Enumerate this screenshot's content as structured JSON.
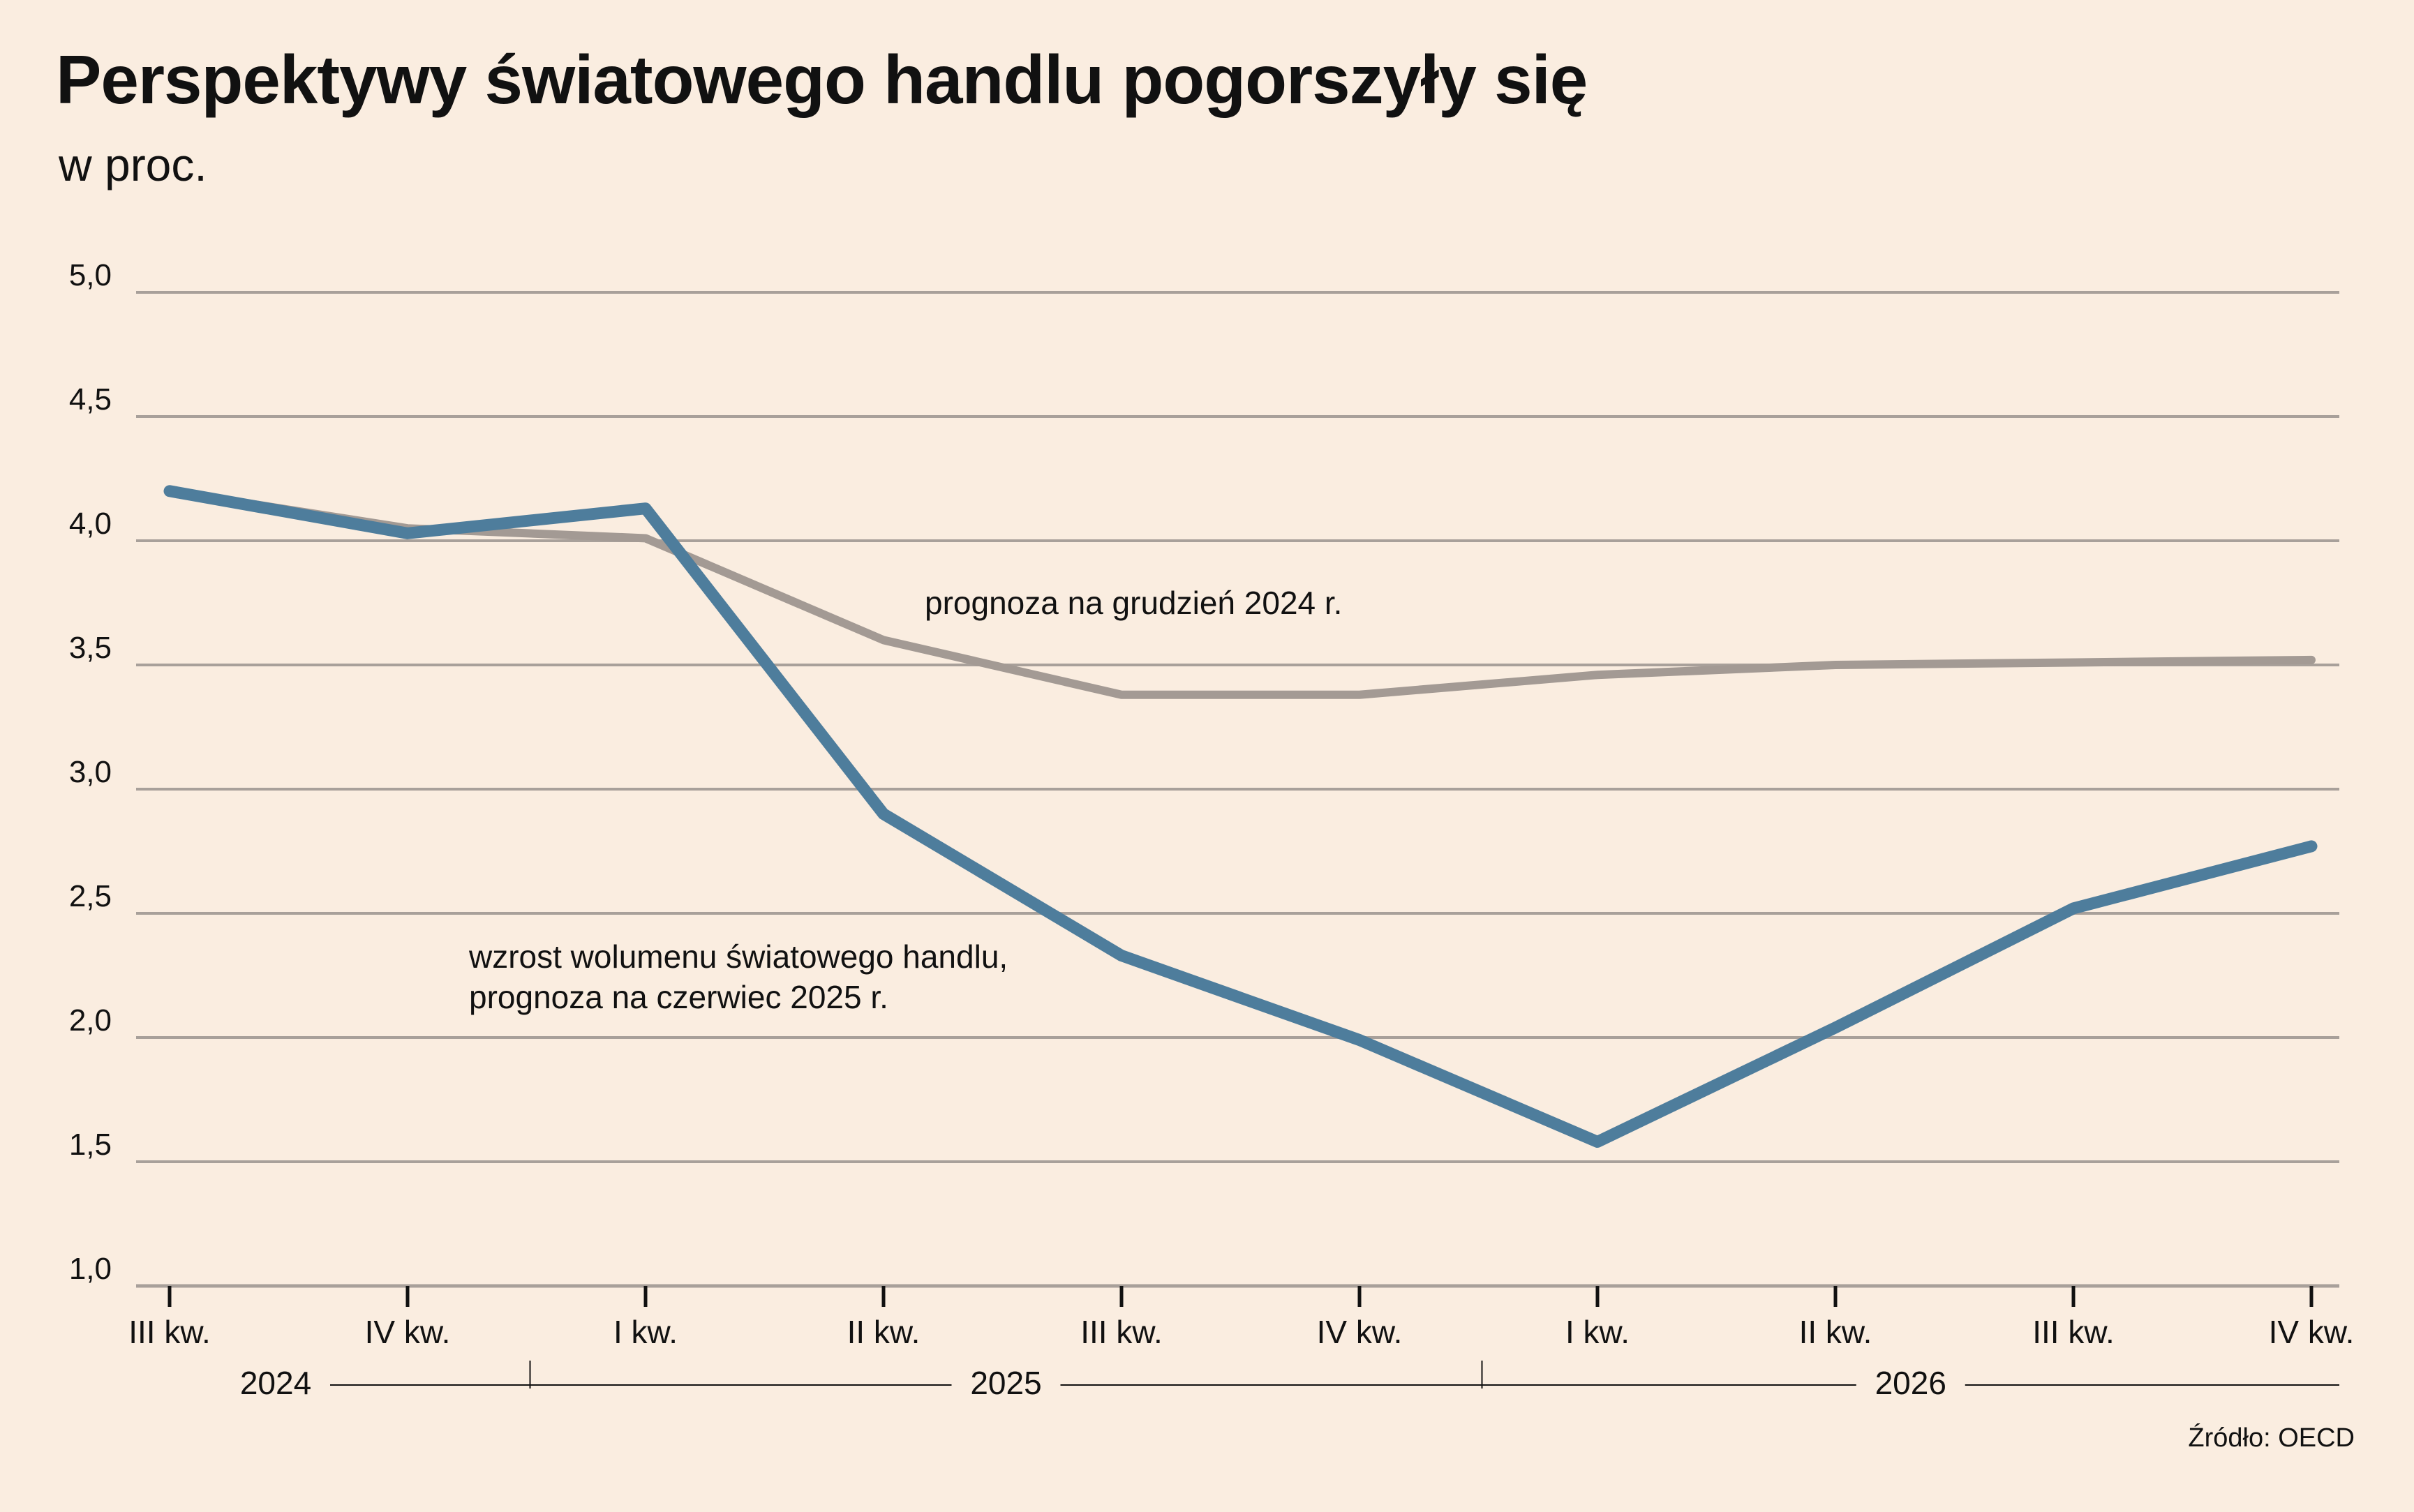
{
  "title": "Perspektywy światowego handlu pogorszyły się",
  "subtitle": "w proc.",
  "source": "Źródło: OECD",
  "colors": {
    "background": "#faede0",
    "forecast_june_2025": "#4e7d9c",
    "forecast_dec_2024": "#a39a94",
    "grid": "#a8a09a"
  },
  "chart_data": {
    "type": "line",
    "title": "Perspektywy światowego handlu pogorszyły się",
    "ylabel": "w proc.",
    "ylim": [
      1.0,
      5.0
    ],
    "yticks": [
      "1,0",
      "1,5",
      "2,0",
      "2,5",
      "3,0",
      "3,5",
      "4,0",
      "4,5",
      "5,0"
    ],
    "categories": [
      "III kw.",
      "IV kw.",
      "I kw.",
      "II kw.",
      "III kw.",
      "IV kw.",
      "I kw.",
      "II kw.",
      "III kw.",
      "IV kw."
    ],
    "year_groups": [
      {
        "label": "2024",
        "start": 0,
        "end": 1
      },
      {
        "label": "2025",
        "start": 2,
        "end": 5
      },
      {
        "label": "2026",
        "start": 6,
        "end": 9
      }
    ],
    "series": [
      {
        "name": "prognoza na grudzień 2024 r.",
        "color": "#a39a94",
        "values": [
          4.2,
          4.05,
          4.01,
          3.6,
          3.38,
          3.38,
          3.46,
          3.5,
          3.51,
          3.52
        ]
      },
      {
        "name": "wzrost wolumenu światowego handlu, prognoza na czerwiec 2025 r.",
        "color": "#4e7d9c",
        "values": [
          4.2,
          4.03,
          4.13,
          2.9,
          2.33,
          1.99,
          1.58,
          2.04,
          2.52,
          2.77
        ]
      }
    ],
    "annotations": [
      {
        "series": 0,
        "lines": [
          "prognoza na grudzień 2024 r."
        ]
      },
      {
        "series": 1,
        "lines": [
          "wzrost wolumenu światowego handlu,",
          "prognoza na czerwiec 2025 r."
        ]
      }
    ],
    "grid": true,
    "legend": "none"
  }
}
